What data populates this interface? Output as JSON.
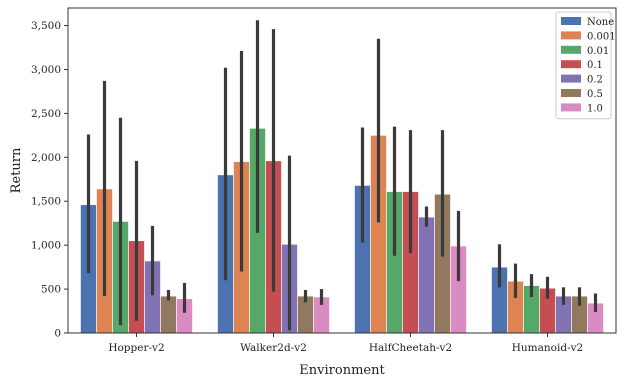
{
  "chart_data": {
    "type": "bar",
    "title": "",
    "xlabel": "Environment",
    "ylabel": "Return",
    "ylim": [
      0,
      3700
    ],
    "yticks": [
      0,
      500,
      1000,
      1500,
      2000,
      2500,
      3000,
      3500
    ],
    "ytick_labels": [
      "0",
      "500",
      "1,000",
      "1,500",
      "2,000",
      "2,500",
      "3,000",
      "3,500"
    ],
    "categories": [
      "Hopper-v2",
      "Walker2d-v2",
      "HalfCheetah-v2",
      "Humanoid-v2"
    ],
    "legend_position": "top-right",
    "grid": false,
    "error_bars": true,
    "series": [
      {
        "name": "None",
        "color": "#4c72b0",
        "values": [
          1460,
          1800,
          1680,
          750
        ],
        "ci": [
          [
            680,
            2260
          ],
          [
            600,
            3020
          ],
          [
            1030,
            2340
          ],
          [
            520,
            1010
          ]
        ]
      },
      {
        "name": "0.001",
        "color": "#dd8452",
        "values": [
          1640,
          1950,
          2250,
          590
        ],
        "ci": [
          [
            420,
            2870
          ],
          [
            700,
            3210
          ],
          [
            1260,
            3350
          ],
          [
            400,
            790
          ]
        ]
      },
      {
        "name": "0.01",
        "color": "#55a868",
        "values": [
          1270,
          2330,
          1610,
          540
        ],
        "ci": [
          [
            90,
            2450
          ],
          [
            1140,
            3560
          ],
          [
            880,
            2350
          ],
          [
            410,
            670
          ]
        ]
      },
      {
        "name": "0.1",
        "color": "#c44e52",
        "values": [
          1050,
          1960,
          1610,
          510
        ],
        "ci": [
          [
            140,
            1960
          ],
          [
            470,
            3460
          ],
          [
            910,
            2310
          ],
          [
            390,
            640
          ]
        ]
      },
      {
        "name": "0.2",
        "color": "#8172b3",
        "values": [
          820,
          1010,
          1320,
          420
        ],
        "ci": [
          [
            430,
            1220
          ],
          [
            30,
            2020
          ],
          [
            1210,
            1440
          ],
          [
            320,
            520
          ]
        ]
      },
      {
        "name": "0.5",
        "color": "#937860",
        "values": [
          420,
          420,
          1580,
          420
        ],
        "ci": [
          [
            370,
            490
          ],
          [
            350,
            490
          ],
          [
            870,
            2310
          ],
          [
            310,
            520
          ]
        ]
      },
      {
        "name": "1.0",
        "color": "#da8bc3",
        "values": [
          390,
          410,
          990,
          340
        ],
        "ci": [
          [
            230,
            570
          ],
          [
            320,
            500
          ],
          [
            590,
            1390
          ],
          [
            240,
            450
          ]
        ]
      }
    ]
  }
}
